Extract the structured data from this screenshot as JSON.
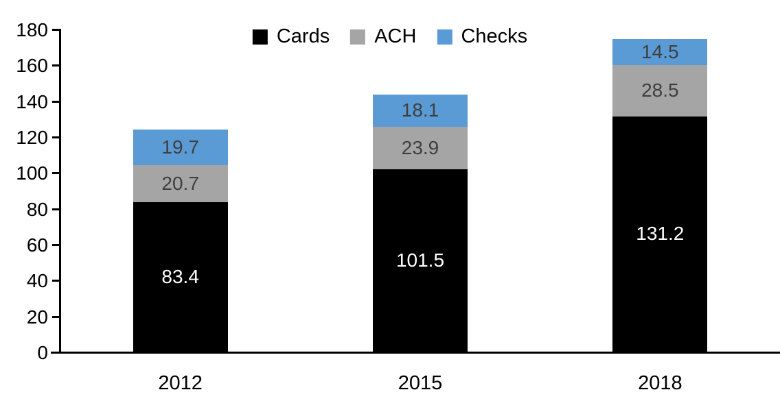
{
  "chart_data": {
    "type": "bar",
    "stacked": true,
    "categories": [
      "2012",
      "2015",
      "2018"
    ],
    "series": [
      {
        "name": "Cards",
        "color": "#000000",
        "label_color": "#FFFFFF",
        "values": [
          83.4,
          101.5,
          131.2
        ]
      },
      {
        "name": "ACH",
        "color": "#A5A5A5",
        "label_color": "#3F3F3F",
        "values": [
          20.7,
          23.9,
          28.5
        ]
      },
      {
        "name": "Checks",
        "color": "#5B9BD5",
        "label_color": "#3F3F3F",
        "values": [
          19.7,
          18.1,
          14.5
        ]
      }
    ],
    "totals": [
      123.8,
      143.5,
      174.2
    ],
    "ylim": [
      0,
      180
    ],
    "ytick_step": 20,
    "ytick_labels": [
      "0",
      "20",
      "40",
      "60",
      "80",
      "100",
      "120",
      "140",
      "160",
      "180"
    ],
    "grid": false,
    "legend_position": "top-center",
    "legend": [
      "Cards",
      "ACH",
      "Checks"
    ],
    "axis_color": "#000000",
    "background_color": "#FFFFFF",
    "data_label_decimals": 1
  }
}
